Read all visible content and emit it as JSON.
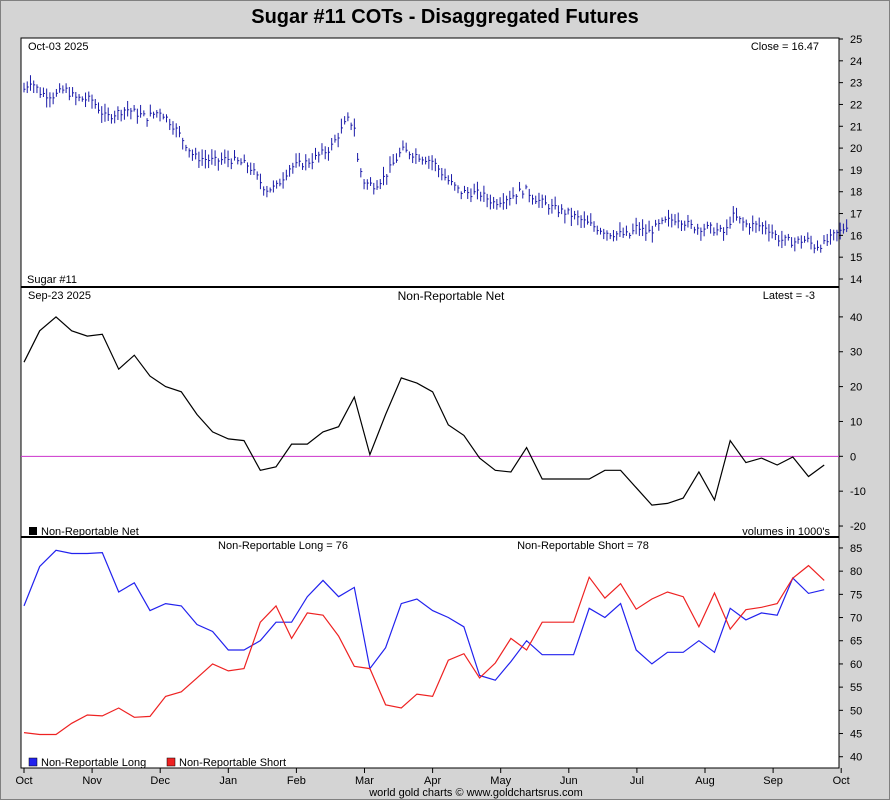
{
  "title": "Sugar #11 COTs - Disaggregated Futures",
  "footer": "world gold charts © www.goldchartsrus.com",
  "x_axis_labels": [
    "Oct",
    "Nov",
    "Dec",
    "Jan",
    "Feb",
    "Mar",
    "Apr",
    "May",
    "Jun",
    "Jul",
    "Aug",
    "Sep",
    "Oct"
  ],
  "colors": {
    "price": "#1a1aa8",
    "net": "#000000",
    "zero_line": "#cc33cc",
    "long": "#2222ee",
    "short": "#ee2222"
  },
  "chart_data": [
    {
      "type": "ohlc",
      "panel": "price",
      "date_label": "Oct-03  2025",
      "close_label": "Close = 16.47",
      "series_label": "Sugar #11",
      "ylim": [
        14,
        25
      ],
      "yticks": [
        14,
        15,
        16,
        17,
        18,
        19,
        20,
        21,
        22,
        23,
        24,
        25
      ],
      "months_span": 12.15,
      "anchors": [
        [
          0,
          22.7
        ],
        [
          0.1,
          23.1
        ],
        [
          0.25,
          22.5
        ],
        [
          0.45,
          22.4
        ],
        [
          0.6,
          22.7
        ],
        [
          0.75,
          22.3
        ],
        [
          1.0,
          22.2
        ],
        [
          1.2,
          21.4
        ],
        [
          1.5,
          21.8
        ],
        [
          1.8,
          21.4
        ],
        [
          2.0,
          21.7
        ],
        [
          2.2,
          21.0
        ],
        [
          2.5,
          19.6
        ],
        [
          2.8,
          19.4
        ],
        [
          3.0,
          19.5
        ],
        [
          3.3,
          19.2
        ],
        [
          3.55,
          18.1
        ],
        [
          3.7,
          18.2
        ],
        [
          3.9,
          19.1
        ],
        [
          4.2,
          19.4
        ],
        [
          4.5,
          20.0
        ],
        [
          4.75,
          21.3
        ],
        [
          4.85,
          21.0
        ],
        [
          4.9,
          19.4
        ],
        [
          5.0,
          18.4
        ],
        [
          5.15,
          18.3
        ],
        [
          5.3,
          18.7
        ],
        [
          5.55,
          19.9
        ],
        [
          5.75,
          19.7
        ],
        [
          6.0,
          19.4
        ],
        [
          6.2,
          18.6
        ],
        [
          6.4,
          18.0
        ],
        [
          6.7,
          17.9
        ],
        [
          6.9,
          17.5
        ],
        [
          7.15,
          17.8
        ],
        [
          7.35,
          18.1
        ],
        [
          7.55,
          17.6
        ],
        [
          7.8,
          17.2
        ],
        [
          8.0,
          17.0
        ],
        [
          8.3,
          16.5
        ],
        [
          8.6,
          16.1
        ],
        [
          8.9,
          16.0
        ],
        [
          9.0,
          16.4
        ],
        [
          9.15,
          16.1
        ],
        [
          9.4,
          16.6
        ],
        [
          9.6,
          16.8
        ],
        [
          9.8,
          16.4
        ],
        [
          10.1,
          16.3
        ],
        [
          10.3,
          16.1
        ],
        [
          10.4,
          16.9
        ],
        [
          10.6,
          16.5
        ],
        [
          10.9,
          16.4
        ],
        [
          11.1,
          15.8
        ],
        [
          11.3,
          15.7
        ],
        [
          11.5,
          15.8
        ],
        [
          11.6,
          15.5
        ],
        [
          11.75,
          15.6
        ],
        [
          11.9,
          16.0
        ],
        [
          12.0,
          16.2
        ],
        [
          12.08,
          16.47
        ]
      ]
    },
    {
      "type": "line",
      "panel": "net",
      "title": "Non-Reportable Net",
      "date_label": "Sep-23  2025",
      "latest_label": "Latest = -3",
      "legend_label": "Non-Reportable Net",
      "note": "volumes in 1000's",
      "ylim": [
        -22,
        48
      ],
      "yticks": [
        -20,
        -10,
        0,
        10,
        20,
        30,
        40
      ],
      "x": [
        0.0,
        0.23,
        0.47,
        0.7,
        0.93,
        1.15,
        1.39,
        1.62,
        1.85,
        2.08,
        2.31,
        2.54,
        2.77,
        3.0,
        3.23,
        3.47,
        3.7,
        3.93,
        4.16,
        4.39,
        4.62,
        4.85,
        5.08,
        5.31,
        5.54,
        5.77,
        6.0,
        6.23,
        6.46,
        6.69,
        6.92,
        7.15,
        7.38,
        7.61,
        7.84,
        8.07,
        8.3,
        8.53,
        8.76,
        8.99,
        9.22,
        9.45,
        9.68,
        9.91,
        10.14,
        10.37,
        10.6,
        10.83,
        11.06,
        11.29,
        11.52,
        11.75
      ],
      "values": [
        27,
        36,
        40,
        36,
        34.5,
        35,
        25,
        29,
        23,
        20,
        18.5,
        12,
        7,
        5,
        4.5,
        -4,
        -3,
        3.5,
        3.5,
        7,
        8.5,
        17,
        0.5,
        12,
        22.5,
        21,
        18.5,
        9,
        6,
        -0.5,
        -4,
        -4.5,
        2.5,
        -6.5,
        -6.5,
        -6.5,
        -6.5,
        -4,
        -4,
        -9,
        -14,
        -13.5,
        -12,
        -4.5,
        -12.5,
        4.5,
        -1.8,
        -0.5,
        -2.5,
        -0.2,
        -5.8,
        -2.5
      ]
    },
    {
      "type": "line",
      "panel": "long_short",
      "long_label": "Non-Reportable Long = 76",
      "short_label": "Non-Reportable Short = 78",
      "legend": [
        "Non-Reportable Long",
        "Non-Reportable Short"
      ],
      "ylim": [
        38,
        86.5
      ],
      "yticks": [
        40,
        45,
        50,
        55,
        60,
        65,
        70,
        75,
        80,
        85
      ],
      "x": [
        0.0,
        0.23,
        0.47,
        0.7,
        0.93,
        1.15,
        1.39,
        1.62,
        1.85,
        2.08,
        2.31,
        2.54,
        2.77,
        3.0,
        3.23,
        3.47,
        3.7,
        3.93,
        4.16,
        4.39,
        4.62,
        4.85,
        5.08,
        5.31,
        5.54,
        5.77,
        6.0,
        6.23,
        6.46,
        6.69,
        6.92,
        7.15,
        7.38,
        7.61,
        7.84,
        8.07,
        8.3,
        8.53,
        8.76,
        8.99,
        9.22,
        9.45,
        9.68,
        9.91,
        10.14,
        10.37,
        10.6,
        10.83,
        11.06,
        11.29,
        11.52,
        11.75
      ],
      "series": [
        {
          "name": "Non-Reportable Long",
          "values": [
            72.5,
            81,
            84.5,
            83.8,
            83.8,
            84,
            75.5,
            77.5,
            71.5,
            73,
            72.5,
            68.5,
            67,
            63,
            63,
            65,
            69,
            69,
            74.5,
            78,
            74.5,
            76.5,
            59,
            63.5,
            73,
            74,
            71.5,
            70,
            68,
            57.5,
            56.5,
            60.5,
            65,
            62,
            62,
            62,
            72,
            70,
            73,
            63,
            60,
            62.5,
            62.5,
            65,
            62.5,
            72,
            69.5,
            71,
            70.5,
            78.5,
            75.2,
            76
          ]
        },
        {
          "name": "Non-Reportable Short",
          "values": [
            45.2,
            44.8,
            44.8,
            47.2,
            49,
            48.8,
            50.5,
            48.5,
            48.7,
            53,
            54,
            57,
            60,
            58.5,
            59,
            69,
            72.5,
            65.5,
            71,
            70.5,
            66,
            59.5,
            59,
            51.2,
            50.5,
            53.5,
            53,
            60.8,
            62.2,
            57,
            60.2,
            65.5,
            63,
            69,
            69,
            69,
            78.7,
            74.2,
            77.3,
            71.8,
            74,
            75.5,
            74.5,
            68,
            75.3,
            67.5,
            71.7,
            72.2,
            73,
            78.5,
            81.2,
            78
          ]
        }
      ]
    }
  ]
}
